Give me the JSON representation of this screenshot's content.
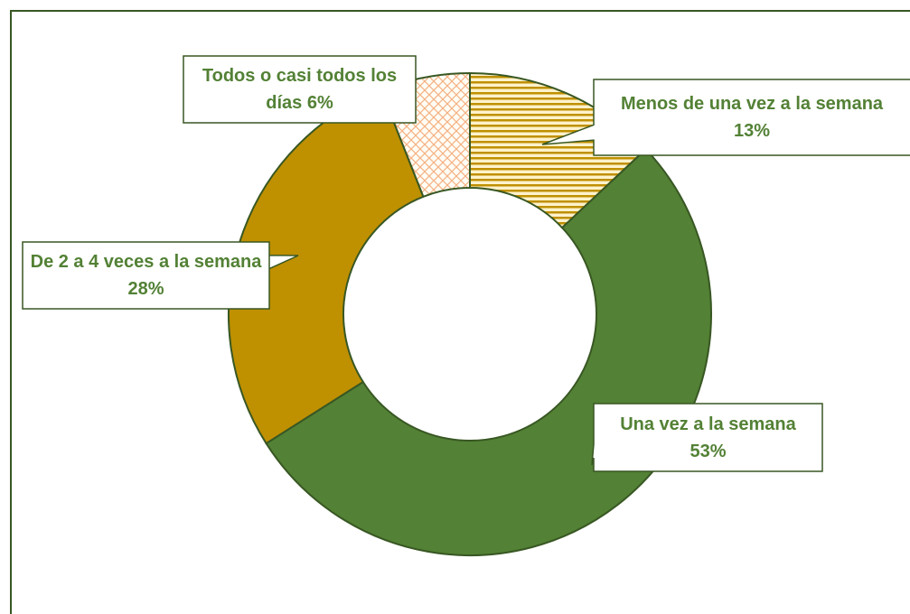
{
  "chart_data": {
    "type": "donut",
    "categories": [
      "Menos de una vez a la semana",
      "Una vez a la semana",
      "De 2 a 4 veces a la semana",
      "Todos o casi todos los días"
    ],
    "values": [
      13,
      53,
      28,
      6
    ],
    "value_labels": [
      "13%",
      "53%",
      "28%",
      "6%"
    ],
    "colors": [
      "#bf9000",
      "#538135",
      "#bf9000",
      "#f4b183"
    ],
    "patterns": [
      "horizontal",
      "none",
      "none",
      "crosshatch"
    ]
  }
}
